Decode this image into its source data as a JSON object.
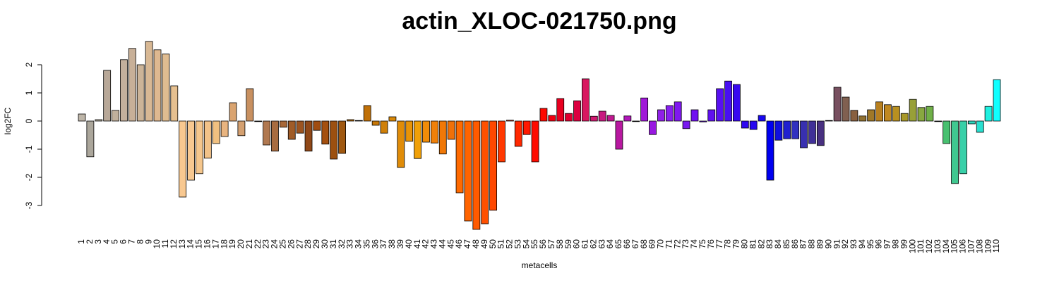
{
  "chart_data": {
    "type": "bar",
    "title": "actin_XLOC-021750.png",
    "x_label": "metacells",
    "y_label": "log2FC",
    "categories": [
      "1",
      "2",
      "3",
      "4",
      "5",
      "6",
      "7",
      "8",
      "9",
      "10",
      "11",
      "12",
      "13",
      "14",
      "15",
      "16",
      "17",
      "18",
      "19",
      "20",
      "21",
      "22",
      "23",
      "24",
      "25",
      "26",
      "27",
      "28",
      "29",
      "30",
      "31",
      "32",
      "33",
      "34",
      "35",
      "36",
      "37",
      "38",
      "39",
      "40",
      "41",
      "42",
      "43",
      "44",
      "45",
      "46",
      "47",
      "48",
      "49",
      "50",
      "51",
      "52",
      "53",
      "54",
      "55",
      "56",
      "57",
      "58",
      "59",
      "60",
      "61",
      "62",
      "63",
      "64",
      "65",
      "66",
      "67",
      "68",
      "69",
      "70",
      "71",
      "72",
      "73",
      "74",
      "75",
      "76",
      "77",
      "78",
      "79",
      "80",
      "81",
      "82",
      "83",
      "84",
      "85",
      "86",
      "87",
      "88",
      "89",
      "90",
      "91",
      "92",
      "93",
      "94",
      "95",
      "96",
      "97",
      "98",
      "99",
      "100",
      "101",
      "102",
      "103",
      "104",
      "105",
      "106",
      "107",
      "108",
      "109",
      "110"
    ],
    "values": [
      0.25,
      -1.27,
      0.05,
      1.8,
      0.38,
      2.18,
      2.58,
      2.0,
      2.83,
      2.53,
      2.38,
      1.25,
      -2.7,
      -2.1,
      -1.87,
      -1.32,
      -0.8,
      -0.55,
      0.65,
      -0.52,
      1.15,
      -0.02,
      -0.85,
      -1.07,
      -0.22,
      -0.65,
      -0.43,
      -1.07,
      -0.33,
      -0.82,
      -1.35,
      -1.15,
      0.05,
      0.02,
      0.55,
      -0.15,
      -0.43,
      0.15,
      -1.65,
      -0.72,
      -1.33,
      -0.75,
      -0.78,
      -1.17,
      -0.65,
      -2.55,
      -3.55,
      -3.85,
      -3.65,
      -3.17,
      -1.45,
      0.03,
      -0.9,
      -0.48,
      -1.45,
      0.45,
      0.2,
      0.8,
      0.27,
      0.72,
      1.5,
      0.17,
      0.35,
      0.2,
      -1.0,
      0.18,
      -0.02,
      0.82,
      -0.48,
      0.4,
      0.55,
      0.68,
      -0.27,
      0.4,
      -0.03,
      0.4,
      1.15,
      1.42,
      1.3,
      -0.25,
      -0.3,
      0.2,
      -2.1,
      -0.68,
      -0.63,
      -0.63,
      -0.95,
      -0.8,
      -0.87,
      0.02,
      1.2,
      0.85,
      0.38,
      0.18,
      0.4,
      0.68,
      0.58,
      0.52,
      0.27,
      0.77,
      0.48,
      0.52,
      -0.02,
      -0.8,
      -2.22,
      -1.87,
      -0.1,
      -0.4,
      0.52,
      1.47
    ],
    "colors": [
      "#bdb5a8",
      "#aba69b",
      "#b8b0a0",
      "#b8a898",
      "#c0b09c",
      "#c4b09c",
      "#c8b098",
      "#ccb498",
      "#d8b894",
      "#deb890",
      "#e0bc90",
      "#e6c090",
      "#f8c890",
      "#f8c890",
      "#f5c68c",
      "#f2c288",
      "#f0c080",
      "#e8b480",
      "#daa470",
      "#d4a070",
      "#c89060",
      "#b88050",
      "#b07850",
      "#a86c40",
      "#a86838",
      "#a05c28",
      "#9c5420",
      "#904818",
      "#a04c10",
      "#a45010",
      "#9c5010",
      "#a05810",
      "#b06808",
      "#b46c08",
      "#c07008",
      "#c87808",
      "#d08008",
      "#d88808",
      "#e08c08",
      "#e89408",
      "#f0a008",
      "#f08c08",
      "#f08008",
      "#f07808",
      "#f07008",
      "#ff6a00",
      "#ff6400",
      "#ff5a00",
      "#ff5000",
      "#ff4800",
      "#ff3800",
      "#ff3000",
      "#ff2800",
      "#ff1800",
      "#ff0c00",
      "#ff0800",
      "#f00010",
      "#e80020",
      "#e00030",
      "#dc0040",
      "#d81860",
      "#d01870",
      "#c81880",
      "#c01890",
      "#b818a0",
      "#b018b8",
      "#a818c8",
      "#a018d8",
      "#9818e0",
      "#9020e8",
      "#8820f0",
      "#8018f0",
      "#7818f0",
      "#7010f0",
      "#6810f0",
      "#6010f0",
      "#5810f0",
      "#4810f0",
      "#3808f0",
      "#3008f0",
      "#2808f0",
      "#1808f0",
      "#0000f0",
      "#1010e0",
      "#2020d0",
      "#3030c0",
      "#3830b0",
      "#403098",
      "#483080",
      "#503070",
      "#785060",
      "#806050",
      "#886040",
      "#907030",
      "#a07828",
      "#b88020",
      "#c08820",
      "#b89020",
      "#a89828",
      "#98a038",
      "#88a840",
      "#70b048",
      "#58b858",
      "#48c070",
      "#40c890",
      "#38d0a8",
      "#30d8c0",
      "#28e0d0",
      "#20f0e0",
      "#10ffff"
    ],
    "ylim": [
      -3.95,
      2.9
    ],
    "yticks": [
      -3,
      -2,
      -1,
      0,
      1,
      2
    ]
  }
}
